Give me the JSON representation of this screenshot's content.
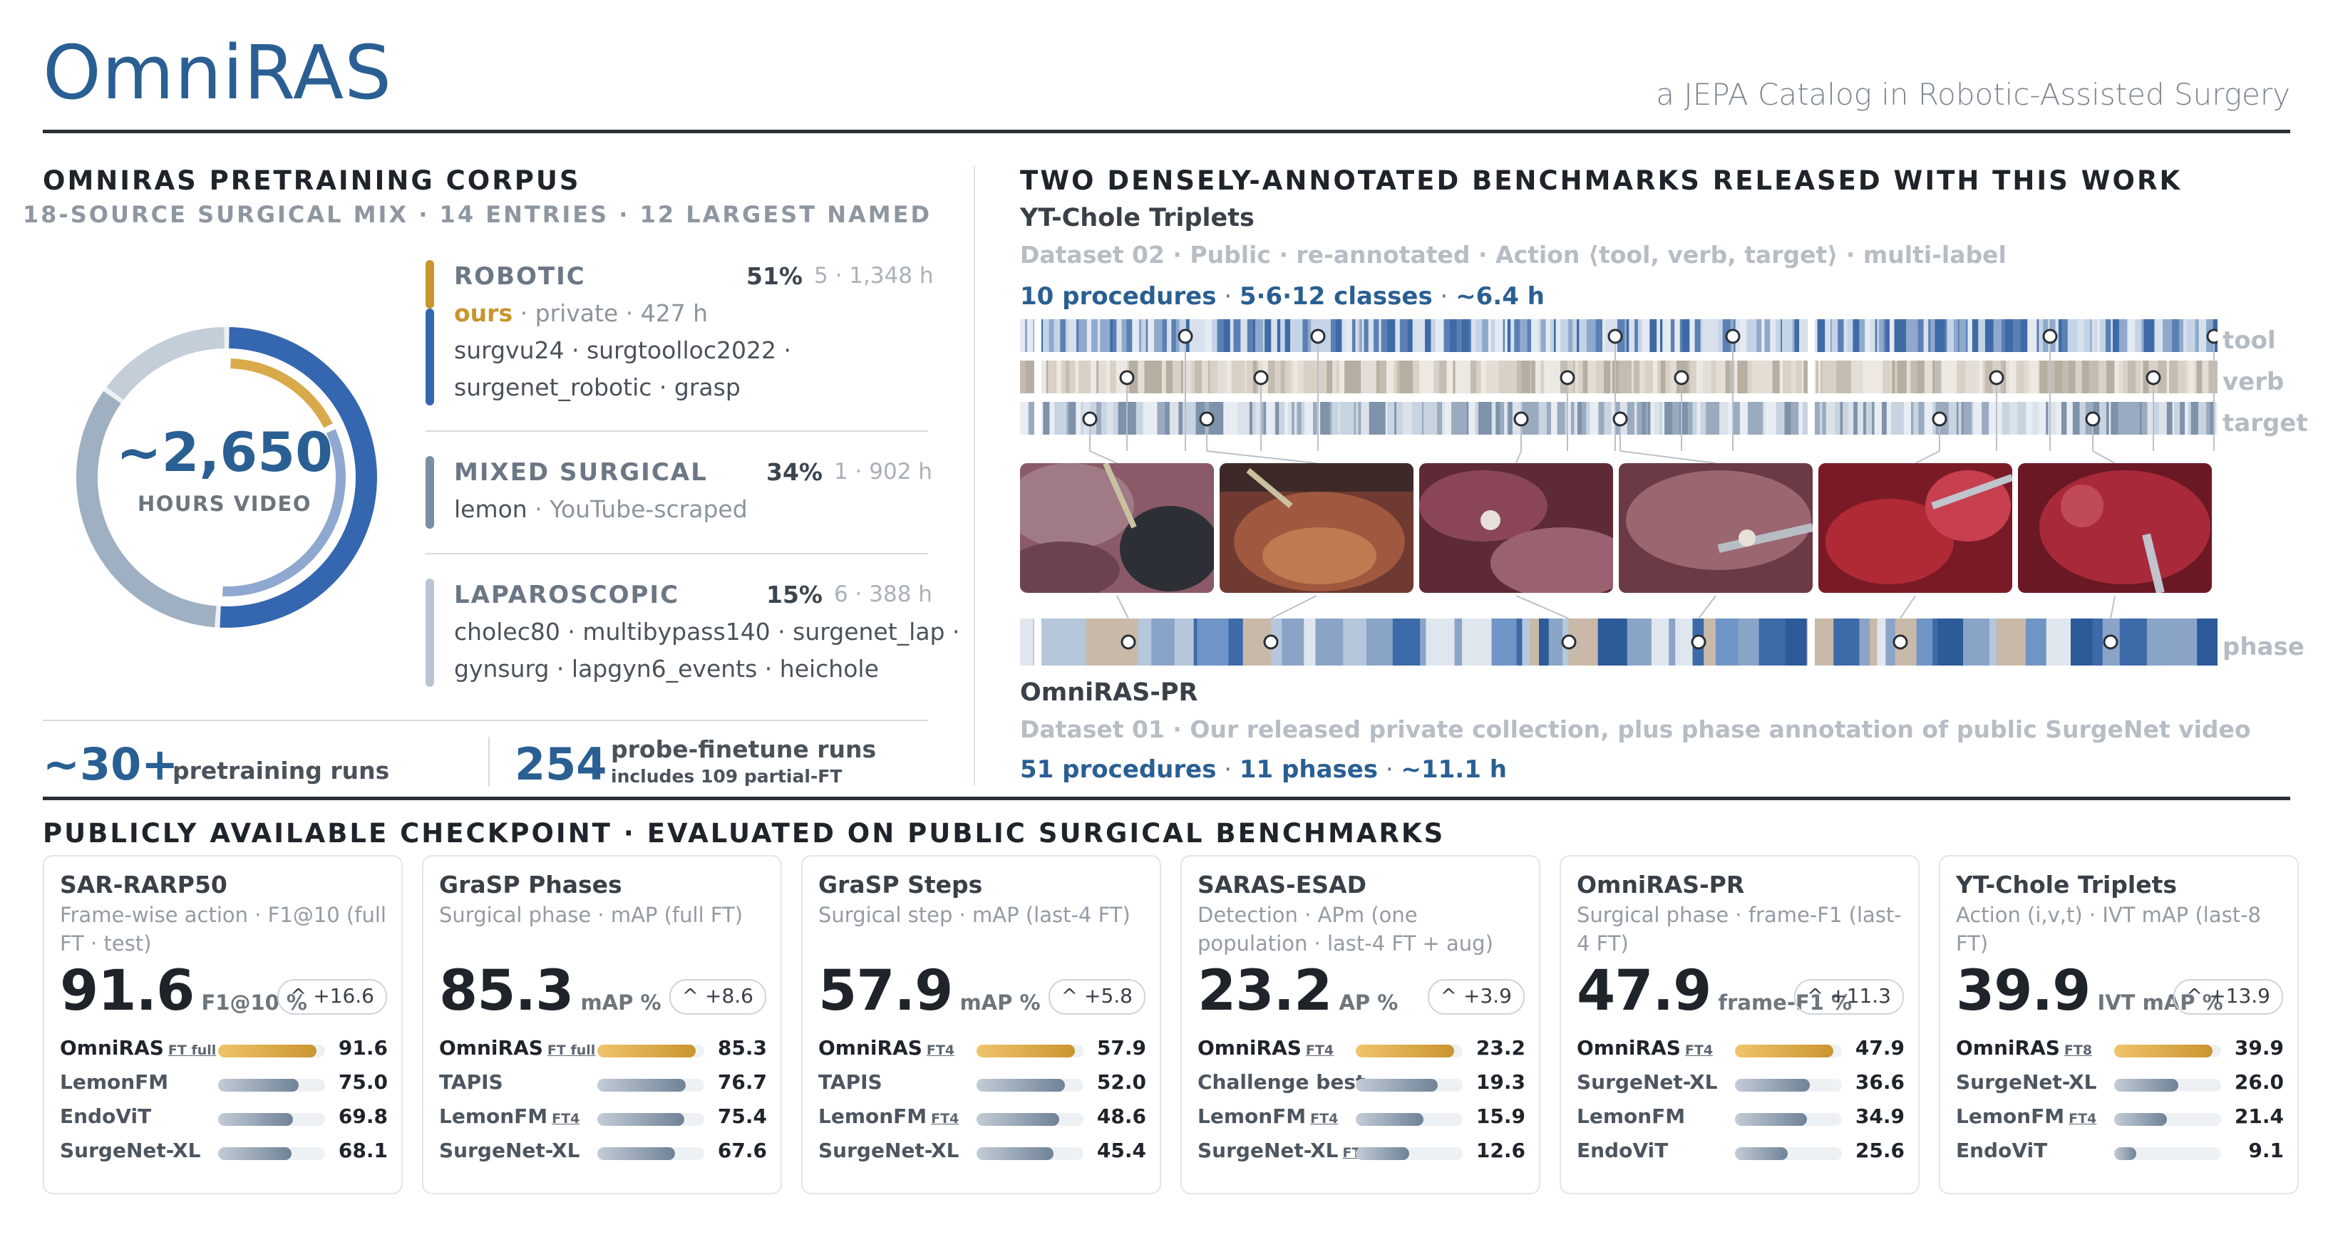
{
  "header": {
    "title": "OmniRAS",
    "tagline": "a JEPA Catalog in Robotic-Assisted Surgery"
  },
  "corpus": {
    "heading": "OMNIRAS PRETRAINING CORPUS",
    "subheading": "18-SOURCE SURGICAL MIX · 14 ENTRIES · 12 LARGEST NAMED",
    "hours_value": "~2,650",
    "hours_label": "HOURS VIDEO",
    "groups": [
      {
        "name": "ROBOTIC",
        "pct": "51%",
        "meta": "5 · 1,348 h",
        "color": "#3567b0",
        "ours_label": "ours",
        "ours_rest": " · private · 427 h",
        "lines": [
          "surgvu24 · surgtoolloc2022 ·",
          "surgenet_robotic · grasp"
        ]
      },
      {
        "name": "MIXED SURGICAL",
        "pct": "34%",
        "meta": "1 · 902 h",
        "color": "#7b8ea3",
        "lines": [
          "",
          "YouTube-scraped"
        ],
        "lemon": "lemon"
      },
      {
        "name": "LAPAROSCOPIC",
        "pct": "15%",
        "meta": "6 · 388 h",
        "color": "#b9c5d2",
        "lines": [
          "cholec80 · multibypass140 · surgenet_lap ·",
          "gynsurg · lapgyn6_events · heichole"
        ]
      }
    ],
    "stats": [
      {
        "value": "~30+",
        "label": "pretraining runs"
      },
      {
        "value": "254",
        "label": "probe-finetune runs",
        "note": "includes 109 partial-FT"
      }
    ]
  },
  "benchmarks": {
    "heading": "TWO DENSELY-ANNOTATED BENCHMARKS RELEASED WITH THIS WORK",
    "yt": {
      "title": "YT-Chole Triplets",
      "meta": "Dataset 02 · Public · re-annotated · Action ⟨tool, verb, target⟩ · multi-label",
      "stats": [
        "10 procedures",
        "5·6·12 classes",
        "~6.4 h"
      ]
    },
    "row_labels": {
      "tool": "tool",
      "verb": "verb",
      "target": "target",
      "phase": "phase"
    },
    "pr": {
      "title": "OmniRAS-PR",
      "meta": "Dataset 01 · Our released private collection, plus phase annotation of public SurgeNet video",
      "stats": [
        "51 procedures",
        "11 phases",
        "~11.1 h"
      ]
    }
  },
  "checkpoint": {
    "heading": "PUBLICLY AVAILABLE CHECKPOINT · EVALUATED ON PUBLIC SURGICAL BENCHMARKS",
    "cards": [
      {
        "title": "SAR-RARP50",
        "subtitle": "Frame-wise action · F1@10 (full FT · test)",
        "value": "91.6",
        "unit": "F1@10 %",
        "delta": "^ +16.6",
        "rows": [
          {
            "name": "OmniRAS",
            "tag": "FT full",
            "value": "91.6",
            "v": 91.6
          },
          {
            "name": "LemonFM",
            "tag": "",
            "value": "75.0",
            "v": 75.0
          },
          {
            "name": "EndoViT",
            "tag": "",
            "value": "69.8",
            "v": 69.8
          },
          {
            "name": "SurgeNet-XL",
            "tag": "",
            "value": "68.1",
            "v": 68.1
          }
        ]
      },
      {
        "title": "GraSP Phases",
        "subtitle": "Surgical phase · mAP (full FT)",
        "value": "85.3",
        "unit": "mAP %",
        "delta": "^ +8.6",
        "rows": [
          {
            "name": "OmniRAS",
            "tag": "FT full",
            "value": "85.3",
            "v": 85.3
          },
          {
            "name": "TAPIS",
            "tag": "",
            "value": "76.7",
            "v": 76.7
          },
          {
            "name": "LemonFM",
            "tag": "FT4",
            "value": "75.4",
            "v": 75.4
          },
          {
            "name": "SurgeNet-XL",
            "tag": "",
            "value": "67.6",
            "v": 67.6
          }
        ]
      },
      {
        "title": "GraSP Steps",
        "subtitle": "Surgical step · mAP (last-4 FT)",
        "value": "57.9",
        "unit": "mAP %",
        "delta": "^ +5.8",
        "rows": [
          {
            "name": "OmniRAS",
            "tag": "FT4",
            "value": "57.9",
            "v": 57.9
          },
          {
            "name": "TAPIS",
            "tag": "",
            "value": "52.0",
            "v": 52.0
          },
          {
            "name": "LemonFM",
            "tag": "FT4",
            "value": "48.6",
            "v": 48.6
          },
          {
            "name": "SurgeNet-XL",
            "tag": "",
            "value": "45.4",
            "v": 45.4
          }
        ]
      },
      {
        "title": "SARAS-ESAD",
        "subtitle": "Detection · APm (one population · last-4 FT + aug)",
        "value": "23.2",
        "unit": "AP %",
        "delta": "^ +3.9",
        "rows": [
          {
            "name": "OmniRAS",
            "tag": "FT4",
            "value": "23.2",
            "v": 23.2
          },
          {
            "name": "Challenge best",
            "tag": "",
            "value": "19.3",
            "v": 19.3
          },
          {
            "name": "LemonFM",
            "tag": "FT4",
            "value": "15.9",
            "v": 15.9
          },
          {
            "name": "SurgeNet-XL",
            "tag": "FT4",
            "value": "12.6",
            "v": 12.6
          }
        ]
      },
      {
        "title": "OmniRAS-PR",
        "subtitle": "Surgical phase · frame-F1 (last-4 FT)",
        "value": "47.9",
        "unit": "frame-F1 %",
        "delta": "^ +11.3",
        "rows": [
          {
            "name": "OmniRAS",
            "tag": "FT4",
            "value": "47.9",
            "v": 47.9
          },
          {
            "name": "SurgeNet-XL",
            "tag": "",
            "value": "36.6",
            "v": 36.6
          },
          {
            "name": "LemonFM",
            "tag": "",
            "value": "34.9",
            "v": 34.9
          },
          {
            "name": "EndoViT",
            "tag": "",
            "value": "25.6",
            "v": 25.6
          }
        ]
      },
      {
        "title": "YT-Chole Triplets",
        "subtitle": "Action (i,v,t) · IVT mAP (last-8 FT)",
        "value": "39.9",
        "unit": "IVT mAP %",
        "delta": "^ +13.9",
        "rows": [
          {
            "name": "OmniRAS",
            "tag": "FT8",
            "value": "39.9",
            "v": 39.9
          },
          {
            "name": "SurgeNet-XL",
            "tag": "",
            "value": "26.0",
            "v": 26.0
          },
          {
            "name": "LemonFM",
            "tag": "FT4",
            "value": "21.4",
            "v": 21.4
          },
          {
            "name": "EndoViT",
            "tag": "",
            "value": "9.1",
            "v": 9.1
          }
        ]
      }
    ]
  }
}
